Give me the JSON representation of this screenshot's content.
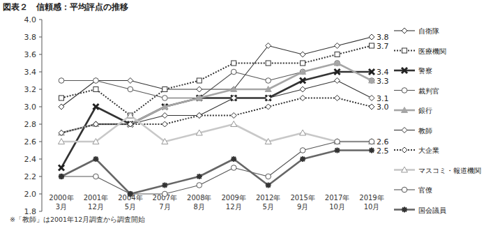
{
  "chart_data": {
    "type": "line",
    "title": "図表２　信頼感：平均評点の推移",
    "footnote": "※「教師」は2001年12月調査から調査開始",
    "categories": [
      "2000年\n3月",
      "2001年\n12月",
      "2004年\n5月",
      "2007年\n7月",
      "2008年\n8月",
      "2009年\n12月",
      "2012年\n5月",
      "2015年\n9月",
      "2017年\n10月",
      "2019年\n10月"
    ],
    "ylim": [
      1.8,
      4.0
    ],
    "yticks": [
      1.8,
      {
        "value": 2,
        "label": "2.0"
      },
      2.2,
      2.4,
      2.6,
      2.8,
      {
        "value": 3,
        "label": "3.0"
      },
      3.2,
      3.4,
      3.6,
      3.8,
      {
        "value": 4,
        "label": "4.0"
      }
    ],
    "grid": false,
    "legend": "right",
    "series": [
      {
        "name": "自衛隊",
        "color": "#333333",
        "marker": "diamond",
        "line_style": "solid",
        "values": [
          3.0,
          3.3,
          3.3,
          3.2,
          3.2,
          3.2,
          3.7,
          3.6,
          3.7,
          3.8
        ]
      },
      {
        "name": "医療機関",
        "color": "#333333",
        "marker": "square",
        "line_style": "dotted",
        "values": [
          3.1,
          3.2,
          2.9,
          3.2,
          3.3,
          3.5,
          3.5,
          3.5,
          3.6,
          3.7
        ]
      },
      {
        "name": "警察",
        "color": "#333333",
        "marker": "x",
        "line_style": "solid",
        "values": [
          2.3,
          3.0,
          2.8,
          3.0,
          3.1,
          3.1,
          3.1,
          3.3,
          3.4,
          3.4
        ]
      },
      {
        "name": "裁判官",
        "color": "#555555",
        "marker": "circle",
        "line_style": "solid",
        "values": [
          3.3,
          3.3,
          3.2,
          3.1,
          3.1,
          3.4,
          3.3,
          3.4,
          3.5,
          3.3
        ]
      },
      {
        "name": "銀行",
        "color": "#a6a6a6",
        "marker": "triangle",
        "line_style": "solid",
        "values": [
          2.7,
          2.8,
          2.8,
          3.0,
          3.1,
          3.2,
          3.2,
          3.4,
          3.5,
          3.3
        ]
      },
      {
        "name": "教師",
        "color": "#333333",
        "marker": "diamond",
        "line_style": "solid",
        "values": [
          null,
          2.8,
          2.8,
          2.9,
          2.9,
          3.1,
          3.1,
          3.2,
          3.3,
          3.1
        ]
      },
      {
        "name": "大企業",
        "color": "#333333",
        "marker": "diamond",
        "line_style": "dotted",
        "values": [
          2.7,
          2.8,
          2.8,
          2.8,
          2.9,
          2.9,
          3.0,
          3.1,
          3.1,
          3.0
        ]
      },
      {
        "name": "マスコミ・報道機関",
        "color": "#c8c8c8",
        "marker": "triangle-open",
        "line_style": "solid",
        "values": [
          2.6,
          2.6,
          2.9,
          2.6,
          2.7,
          2.8,
          2.6,
          2.7,
          2.6,
          2.6
        ]
      },
      {
        "name": "官僚",
        "color": "#555555",
        "marker": "circle",
        "line_style": "solid",
        "values": [
          2.2,
          2.2,
          2.0,
          2.0,
          2.1,
          2.3,
          2.2,
          2.5,
          2.6,
          2.6
        ]
      },
      {
        "name": "国会議員",
        "color": "#666666",
        "marker": "cross",
        "line_style": "solid",
        "values": [
          2.2,
          2.4,
          2.0,
          2.1,
          2.2,
          2.4,
          2.1,
          2.4,
          2.5,
          2.5
        ]
      }
    ],
    "annotations": [
      {
        "text": "3.8",
        "y": 3.8
      },
      {
        "text": "3.7",
        "y": 3.7
      },
      {
        "text": "3.4",
        "y": 3.4
      },
      {
        "text": "3.3",
        "y": 3.3
      },
      {
        "text": "3.1",
        "y": 3.1
      },
      {
        "text": "3.0",
        "y": 3.0
      },
      {
        "text": "2.6",
        "y": 2.6
      },
      {
        "text": "2.5",
        "y": 2.5
      }
    ]
  }
}
